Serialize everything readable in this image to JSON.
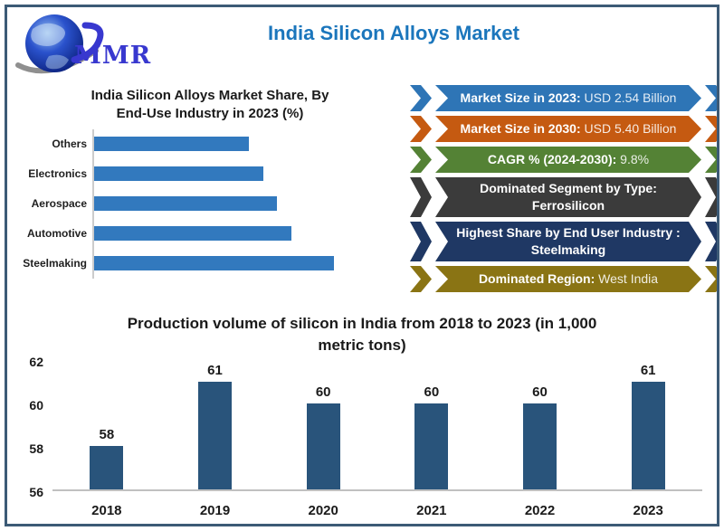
{
  "header": {
    "logo": {
      "text": "MMR"
    },
    "title": "India Silicon Alloys Market",
    "title_color": "#1B76BC"
  },
  "banners": [
    {
      "label": "Market Size in 2023:",
      "value": "USD 2.54 Billion",
      "color": "#2E75B6",
      "stacked": false
    },
    {
      "label": "Market Size in 2030:",
      "value": "USD 5.40 Billion",
      "color": "#C55A11",
      "stacked": false
    },
    {
      "label": "CAGR % (2024-2030):",
      "value": "9.8%",
      "color": "#548235",
      "stacked": false
    },
    {
      "label": "Dominated Segment by Type:",
      "value": "Ferrosilicon",
      "color": "#3B3B3B",
      "stacked": true
    },
    {
      "label": "Highest Share by End User Industry :",
      "value": "Steelmaking",
      "color": "#1F3864",
      "stacked": true
    },
    {
      "label": "Dominated Region:",
      "value": "West India",
      "color": "#8A7414",
      "stacked": false
    }
  ],
  "chart_data": [
    {
      "type": "bar",
      "orientation": "horizontal",
      "title": "India Silicon Alloys Market Share, By End-Use Industry in 2023 (%)",
      "title_lines": [
        "India Silicon Alloys Market Share, By",
        "End-Use Industry in 2023 (%)"
      ],
      "categories": [
        "Others",
        "Electronics",
        "Aerospace",
        "Automotive",
        "Steelmaking"
      ],
      "values": [
        16.4,
        17.9,
        19.4,
        20.9,
        25.4
      ],
      "xlabel": "",
      "ylabel": "",
      "xlim": [
        0,
        33
      ],
      "grid": false,
      "legend": false,
      "bar_color": "#3279BE"
    },
    {
      "type": "bar",
      "title": "Production volume of silicon in India from 2018 to 2023 (in 1,000 metric tons)",
      "title_lines": [
        "Production volume of silicon in India from 2018 to 2023 (in 1,000",
        "metric tons)"
      ],
      "categories": [
        "2018",
        "2019",
        "2020",
        "2021",
        "2022",
        "2023"
      ],
      "values": [
        58,
        61,
        60,
        60,
        60,
        61
      ],
      "xlabel": "",
      "ylabel": "",
      "ylim": [
        56,
        62
      ],
      "yticks": [
        56,
        58,
        60,
        62
      ],
      "data_labels": true,
      "grid": false,
      "legend": false,
      "bar_color": "#29547B"
    }
  ]
}
